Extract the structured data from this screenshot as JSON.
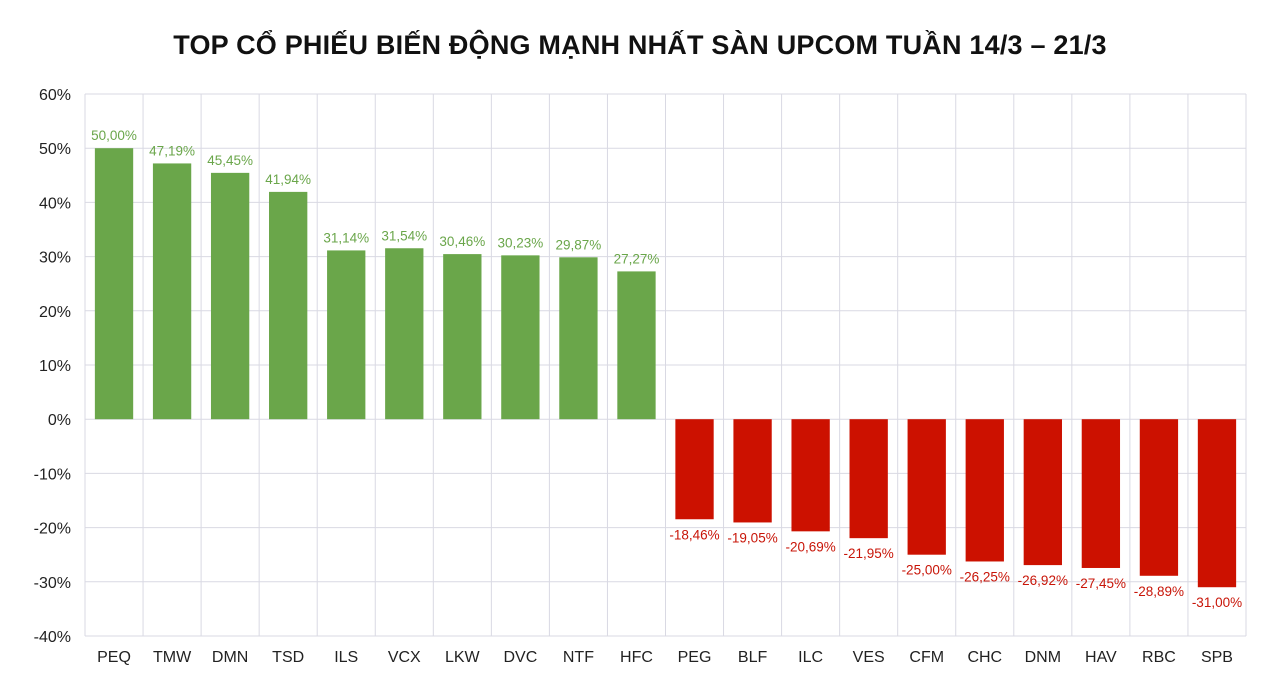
{
  "chart_data": {
    "type": "bar",
    "title": "TOP CỔ PHIẾU BIẾN ĐỘNG MẠNH NHẤT SÀN UPCOM TUẦN 14/3 – 21/3",
    "xlabel": "",
    "ylabel": "",
    "ylim": [
      -40,
      60
    ],
    "yticks": [
      60,
      50,
      40,
      30,
      20,
      10,
      0,
      -10,
      -20,
      -30,
      -40
    ],
    "ytick_labels": [
      "60%",
      "50%",
      "40%",
      "30%",
      "20%",
      "10%",
      "0%",
      "-10%",
      "-20%",
      "-30%",
      "-40%"
    ],
    "grid": true,
    "categories": [
      "PEQ",
      "TMW",
      "DMN",
      "TSD",
      "ILS",
      "VCX",
      "LKW",
      "DVC",
      "NTF",
      "HFC",
      "PEG",
      "BLF",
      "ILC",
      "VES",
      "CFM",
      "CHC",
      "DNM",
      "HAV",
      "RBC",
      "SPB"
    ],
    "values": [
      50.0,
      47.19,
      45.45,
      41.94,
      31.14,
      31.54,
      30.46,
      30.23,
      29.87,
      27.27,
      -18.46,
      -19.05,
      -20.69,
      -21.95,
      -25.0,
      -26.25,
      -26.92,
      -27.45,
      -28.89,
      -31.0
    ],
    "data_labels": [
      "50,00%",
      "47,19%",
      "45,45%",
      "41,94%",
      "31,14%",
      "31,54%",
      "30,46%",
      "30,23%",
      "29,87%",
      "27,27%",
      "-18,46%",
      "-19,05%",
      "-20,69%",
      "-21,95%",
      "-25,00%",
      "-26,25%",
      "-26,92%",
      "-27,45%",
      "-28,89%",
      "-31,00%"
    ],
    "colors": {
      "positive": "#6aa64a",
      "negative": "#cc1100",
      "positive_label": "#6aa64a",
      "negative_label": "#c81508",
      "grid": "#d9d9e3"
    }
  }
}
